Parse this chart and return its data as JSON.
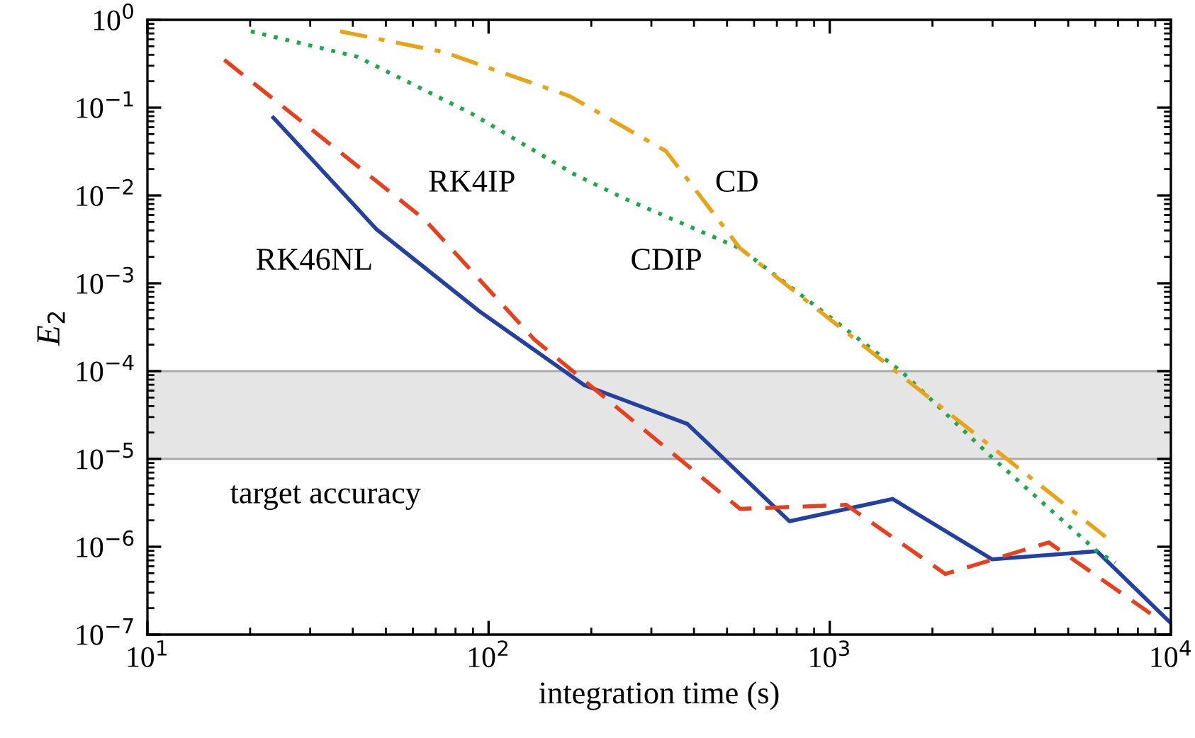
{
  "chart_data": {
    "type": "line",
    "xlabel": "integration time (s)",
    "ylabel": "E$_{2}$",
    "log": "xy",
    "grid": false,
    "legend": false,
    "xlim": [
      10,
      10000
    ],
    "ylim": [
      1e-07,
      1
    ],
    "xticks": [
      {
        "value": 10,
        "label": "10$^{1}$"
      },
      {
        "value": 100,
        "label": "10$^{2}$"
      },
      {
        "value": 1000,
        "label": "10$^{3}$"
      },
      {
        "value": 10000,
        "label": "10$^{4}$"
      }
    ],
    "yticks": [
      {
        "value": 1e-07,
        "label": "10$^{−7}$"
      },
      {
        "value": 1e-06,
        "label": "10$^{−6}$"
      },
      {
        "value": 1e-05,
        "label": "10$^{−5}$"
      },
      {
        "value": 0.0001,
        "label": "10$^{−4}$"
      },
      {
        "value": 0.001,
        "label": "10$^{−3}$"
      },
      {
        "value": 0.01,
        "label": "10$^{−2}$"
      },
      {
        "value": 0.1,
        "label": "10$^{−1}$"
      },
      {
        "value": 1,
        "label": "10$^{0}$"
      }
    ],
    "bands": [
      {
        "axis": "y",
        "from": 1e-05,
        "to": 0.0001,
        "label": "target accuracy",
        "color": "#e5e5e5"
      }
    ],
    "series": [
      {
        "name": "RK46NL",
        "color": "#2341a0",
        "line_style": "solid",
        "x": [
          23.4,
          47,
          94,
          191,
          383,
          762,
          1530,
          2990,
          6070,
          10000
        ],
        "values": [
          0.077,
          0.0041,
          0.00048,
          6.9e-05,
          2.5e-05,
          1.95e-06,
          3.5e-06,
          7.2e-07,
          8.9e-07,
          1.35e-07
        ]
      },
      {
        "name": "RK4IP",
        "color": "#e8401c",
        "line_style": "dashed",
        "x": [
          16.8,
          65,
          136,
          546,
          1117,
          2183,
          4385,
          8710
        ],
        "values": [
          0.35,
          0.0053,
          0.00023,
          2.7e-06,
          3e-06,
          4.9e-07,
          1.12e-06,
          1.74e-07
        ]
      },
      {
        "name": "CDIP",
        "color": "#1aaa4a",
        "line_style": "dotted",
        "x": [
          20.1,
          41.2,
          89,
          178,
          249,
          546,
          1637,
          2990,
          6070,
          6870
        ],
        "values": [
          0.74,
          0.38,
          0.086,
          0.0175,
          0.0093,
          0.0025,
          9.6e-05,
          1.04e-05,
          8.9e-07,
          6.6e-07
        ]
      },
      {
        "name": "CD",
        "color": "#e8a317",
        "line_style": "dashdot",
        "x": [
          36.7,
          73.8,
          173,
          331,
          546,
          6430
        ],
        "values": [
          0.74,
          0.43,
          0.135,
          0.032,
          0.0025,
          1.3e-06
        ]
      }
    ]
  }
}
